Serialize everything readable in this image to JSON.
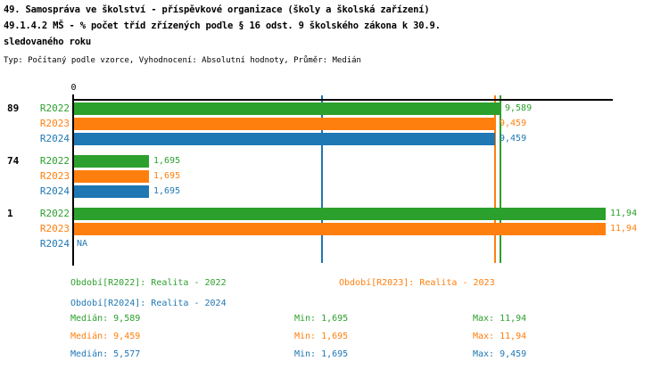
{
  "title": {
    "line1": "49. Samospráva ve školství - příspěvkové organizace (školy a školská zařízení)",
    "line2": "49.1.4.2 MŠ - % počet tříd zřízených podle § 16 odst. 9 školského zákona k 30.9.",
    "line3": "sledovaného roku",
    "subtitle": "Typ: Počítaný podle vzorce, Vyhodnocení: Absolutní hodnoty, Průměr: Medián"
  },
  "colors": {
    "r2022": "#2ca02c",
    "r2023": "#ff7f0e",
    "r2024": "#1f77b4",
    "axis": "#000000"
  },
  "chart_data": {
    "type": "bar",
    "orientation": "horizontal",
    "x_origin_label": "0",
    "x_axis_range": [
      0,
      12.1
    ],
    "grid": false,
    "series_names": [
      "R2022",
      "R2023",
      "R2024"
    ],
    "groups": [
      {
        "label": "89",
        "bars": [
          {
            "series": "R2022",
            "value": 9.589,
            "display": "9,589"
          },
          {
            "series": "R2023",
            "value": 9.459,
            "display": "9,459"
          },
          {
            "series": "R2024",
            "value": 9.459,
            "display": "9,459"
          }
        ]
      },
      {
        "label": "74",
        "bars": [
          {
            "series": "R2022",
            "value": 1.695,
            "display": "1,695"
          },
          {
            "series": "R2023",
            "value": 1.695,
            "display": "1,695"
          },
          {
            "series": "R2024",
            "value": 1.695,
            "display": "1,695"
          }
        ]
      },
      {
        "label": "1",
        "bars": [
          {
            "series": "R2022",
            "value": 11.94,
            "display": "11,94"
          },
          {
            "series": "R2023",
            "value": 11.94,
            "display": "11,94"
          },
          {
            "series": "R2024",
            "value": null,
            "display": "NA"
          }
        ]
      }
    ],
    "median_lines": [
      {
        "series": "R2022",
        "value": 9.589
      },
      {
        "series": "R2023",
        "value": 9.459
      },
      {
        "series": "R2024",
        "value": 5.577
      }
    ]
  },
  "legend": {
    "items": [
      {
        "series": "r2022",
        "label": "Období[R2022]: Realita - 2022"
      },
      {
        "series": "r2023",
        "label": "Období[R2023]: Realita - 2023"
      },
      {
        "series": "r2024",
        "label": "Období[R2024]: Realita - 2024"
      }
    ],
    "stats": [
      {
        "series": "r2022",
        "median": "Medián: 9,589",
        "min": "Min: 1,695",
        "max": "Max: 11,94"
      },
      {
        "series": "r2023",
        "median": "Medián: 9,459",
        "min": "Min: 1,695",
        "max": "Max: 11,94"
      },
      {
        "series": "r2024",
        "median": "Medián: 5,577",
        "min": "Min: 1,695",
        "max": "Max: 9,459"
      }
    ]
  }
}
